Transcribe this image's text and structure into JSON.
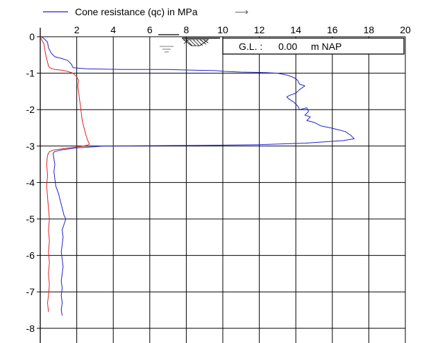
{
  "chart_data": {
    "type": "line",
    "title": "",
    "legend": {
      "label": "Cone resistance (qc) in MPa",
      "arrow": "⟶",
      "placement": "top-left",
      "color": "#1f1fd0"
    },
    "x_axis": {
      "label": "",
      "position": "top",
      "range": [
        0,
        20
      ],
      "ticks": [
        2,
        4,
        6,
        8,
        10,
        12,
        14,
        16,
        18,
        20
      ],
      "tick_labels": [
        "2",
        "4",
        "6",
        "8",
        "10",
        "12",
        "14",
        "16",
        "18",
        "20"
      ]
    },
    "y_axis": {
      "label": "",
      "range": [
        0,
        8.2
      ],
      "inverted": true,
      "ticks": [
        0,
        1,
        2,
        3,
        4,
        5,
        6,
        7,
        8
      ],
      "tick_labels": [
        "0",
        "-1",
        "-2",
        "-3",
        "-4",
        "-5",
        "-6",
        "-7",
        "-8"
      ]
    },
    "grid": true,
    "annotations": {
      "ground_level_label": "G.L. :",
      "ground_level_value": "0.00",
      "ground_level_unit": "m NAP",
      "water_table_symbol": true,
      "ground_hatch_symbol": true
    },
    "series": [
      {
        "color": "#1f1fd0",
        "description_unit": "MPa",
        "points": [
          [
            0.05,
            0.0
          ],
          [
            0.2,
            0.05
          ],
          [
            0.4,
            0.15
          ],
          [
            0.45,
            0.3
          ],
          [
            0.6,
            0.45
          ],
          [
            0.8,
            0.55
          ],
          [
            1.2,
            0.6
          ],
          [
            1.5,
            0.65
          ],
          [
            1.7,
            0.75
          ],
          [
            1.8,
            0.85
          ],
          [
            2.5,
            0.88
          ],
          [
            4.5,
            0.9
          ],
          [
            7.0,
            0.9
          ],
          [
            8.6,
            0.92
          ],
          [
            9.6,
            0.93
          ],
          [
            10.1,
            0.95
          ],
          [
            11.0,
            0.97
          ],
          [
            12.0,
            0.98
          ],
          [
            13.0,
            1.0
          ],
          [
            13.5,
            1.05
          ],
          [
            13.8,
            1.1
          ],
          [
            14.0,
            1.15
          ],
          [
            14.1,
            1.2
          ],
          [
            14.2,
            1.3
          ],
          [
            14.5,
            1.35
          ],
          [
            14.2,
            1.45
          ],
          [
            14.0,
            1.55
          ],
          [
            13.7,
            1.6
          ],
          [
            13.5,
            1.65
          ],
          [
            13.6,
            1.7
          ],
          [
            13.9,
            1.8
          ],
          [
            14.1,
            1.9
          ],
          [
            14.2,
            2.0
          ],
          [
            14.6,
            1.95
          ],
          [
            14.7,
            2.05
          ],
          [
            14.5,
            2.15
          ],
          [
            14.8,
            2.2
          ],
          [
            14.6,
            2.3
          ],
          [
            15.0,
            2.35
          ],
          [
            15.4,
            2.45
          ],
          [
            15.9,
            2.5
          ],
          [
            16.3,
            2.55
          ],
          [
            16.7,
            2.6
          ],
          [
            17.0,
            2.7
          ],
          [
            17.2,
            2.8
          ],
          [
            16.6,
            2.85
          ],
          [
            14.5,
            2.92
          ],
          [
            12.0,
            2.96
          ],
          [
            9.0,
            2.98
          ],
          [
            6.0,
            2.99
          ],
          [
            3.5,
            3.0
          ],
          [
            2.0,
            3.05
          ],
          [
            1.2,
            3.1
          ],
          [
            0.8,
            3.15
          ],
          [
            0.7,
            3.2
          ],
          [
            0.75,
            3.35
          ],
          [
            0.8,
            3.5
          ],
          [
            0.75,
            3.7
          ],
          [
            0.8,
            3.9
          ],
          [
            0.85,
            4.1
          ],
          [
            1.0,
            4.3
          ],
          [
            1.1,
            4.5
          ],
          [
            1.2,
            4.7
          ],
          [
            1.3,
            4.9
          ],
          [
            1.4,
            5.0
          ],
          [
            1.3,
            5.15
          ],
          [
            1.2,
            5.3
          ],
          [
            1.25,
            5.5
          ],
          [
            1.2,
            5.7
          ],
          [
            1.15,
            5.9
          ],
          [
            1.2,
            6.1
          ],
          [
            1.25,
            6.3
          ],
          [
            1.2,
            6.5
          ],
          [
            1.15,
            6.7
          ],
          [
            1.2,
            6.9
          ],
          [
            1.15,
            7.1
          ],
          [
            1.2,
            7.3
          ],
          [
            1.15,
            7.5
          ],
          [
            1.2,
            7.65
          ]
        ]
      },
      {
        "color": "#e02020",
        "points": [
          [
            0.0,
            0.0
          ],
          [
            0.1,
            0.1
          ],
          [
            0.2,
            0.2
          ],
          [
            0.25,
            0.35
          ],
          [
            0.3,
            0.5
          ],
          [
            0.35,
            0.6
          ],
          [
            0.4,
            0.7
          ],
          [
            0.45,
            0.8
          ],
          [
            0.5,
            0.85
          ],
          [
            0.8,
            0.9
          ],
          [
            1.2,
            0.92
          ],
          [
            1.5,
            0.95
          ],
          [
            1.8,
            1.0
          ],
          [
            2.0,
            1.1
          ],
          [
            2.1,
            1.2
          ],
          [
            2.05,
            1.35
          ],
          [
            2.1,
            1.5
          ],
          [
            2.15,
            1.7
          ],
          [
            2.2,
            1.9
          ],
          [
            2.25,
            2.1
          ],
          [
            2.3,
            2.3
          ],
          [
            2.4,
            2.5
          ],
          [
            2.5,
            2.7
          ],
          [
            2.6,
            2.85
          ],
          [
            2.7,
            2.95
          ],
          [
            2.4,
            3.0
          ],
          [
            1.6,
            3.05
          ],
          [
            0.8,
            3.1
          ],
          [
            0.5,
            3.15
          ],
          [
            0.4,
            3.25
          ],
          [
            0.35,
            3.5
          ],
          [
            0.4,
            3.8
          ],
          [
            0.35,
            4.1
          ],
          [
            0.4,
            4.4
          ],
          [
            0.45,
            4.7
          ],
          [
            0.5,
            5.0
          ],
          [
            0.45,
            5.3
          ],
          [
            0.5,
            5.6
          ],
          [
            0.45,
            5.9
          ],
          [
            0.5,
            6.2
          ],
          [
            0.45,
            6.5
          ],
          [
            0.5,
            6.8
          ],
          [
            0.45,
            7.1
          ],
          [
            0.4,
            7.3
          ],
          [
            0.45,
            7.55
          ]
        ]
      }
    ]
  }
}
